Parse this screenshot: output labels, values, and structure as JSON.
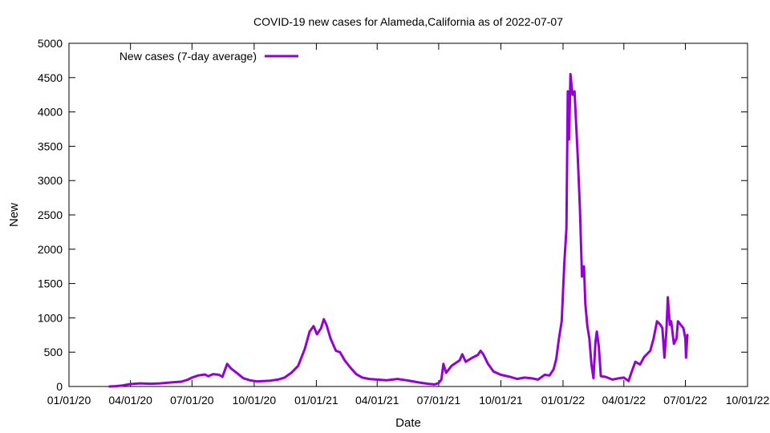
{
  "chart_data": {
    "type": "line",
    "title": "COVID-19 new cases for Alameda,California as of 2022-07-07",
    "xlabel": "Date",
    "ylabel": "New",
    "xlim": [
      "2020-01-01",
      "2022-10-01"
    ],
    "ylim": [
      0,
      5000
    ],
    "x_ticks": [
      "2020-01-01",
      "2020-04-01",
      "2020-07-01",
      "2020-10-01",
      "2021-01-01",
      "2021-04-01",
      "2021-07-01",
      "2021-10-01",
      "2022-01-01",
      "2022-04-01",
      "2022-07-01",
      "2022-10-01"
    ],
    "x_tick_labels": [
      "01/01/20",
      "04/01/20",
      "07/01/20",
      "10/01/20",
      "01/01/21",
      "04/01/21",
      "07/01/21",
      "10/01/21",
      "01/01/22",
      "04/01/22",
      "07/01/22",
      "10/01/22"
    ],
    "y_ticks": [
      0,
      500,
      1000,
      1500,
      2000,
      2500,
      3000,
      3500,
      4000,
      4500,
      5000
    ],
    "y_tick_labels": [
      "0",
      "500",
      "1000",
      "1500",
      "2000",
      "2500",
      "3000",
      "3500",
      "4000",
      "4500",
      "5000"
    ],
    "grid": false,
    "legend_position": "top-left",
    "series": [
      {
        "name": "New cases (7-day average)",
        "color": "#9400d3",
        "points": [
          [
            "2020-03-01",
            0
          ],
          [
            "2020-03-10",
            5
          ],
          [
            "2020-03-20",
            15
          ],
          [
            "2020-04-01",
            35
          ],
          [
            "2020-04-15",
            45
          ],
          [
            "2020-05-01",
            40
          ],
          [
            "2020-05-15",
            45
          ],
          [
            "2020-06-01",
            60
          ],
          [
            "2020-06-15",
            70
          ],
          [
            "2020-06-25",
            100
          ],
          [
            "2020-07-01",
            130
          ],
          [
            "2020-07-10",
            160
          ],
          [
            "2020-07-20",
            175
          ],
          [
            "2020-07-25",
            150
          ],
          [
            "2020-08-01",
            180
          ],
          [
            "2020-08-10",
            170
          ],
          [
            "2020-08-15",
            140
          ],
          [
            "2020-08-22",
            330
          ],
          [
            "2020-08-28",
            260
          ],
          [
            "2020-09-05",
            200
          ],
          [
            "2020-09-15",
            120
          ],
          [
            "2020-09-25",
            90
          ],
          [
            "2020-10-05",
            75
          ],
          [
            "2020-10-15",
            80
          ],
          [
            "2020-10-25",
            85
          ],
          [
            "2020-11-05",
            100
          ],
          [
            "2020-11-15",
            130
          ],
          [
            "2020-11-25",
            200
          ],
          [
            "2020-12-05",
            300
          ],
          [
            "2020-12-15",
            550
          ],
          [
            "2020-12-22",
            800
          ],
          [
            "2020-12-28",
            880
          ],
          [
            "2021-01-02",
            760
          ],
          [
            "2021-01-08",
            850
          ],
          [
            "2021-01-12",
            980
          ],
          [
            "2021-01-16",
            900
          ],
          [
            "2021-01-22",
            700
          ],
          [
            "2021-01-30",
            520
          ],
          [
            "2021-02-05",
            500
          ],
          [
            "2021-02-12",
            380
          ],
          [
            "2021-02-20",
            280
          ],
          [
            "2021-03-01",
            180
          ],
          [
            "2021-03-10",
            130
          ],
          [
            "2021-03-20",
            110
          ],
          [
            "2021-04-01",
            100
          ],
          [
            "2021-04-15",
            90
          ],
          [
            "2021-05-01",
            110
          ],
          [
            "2021-05-15",
            90
          ],
          [
            "2021-06-01",
            60
          ],
          [
            "2021-06-15",
            40
          ],
          [
            "2021-06-25",
            30
          ],
          [
            "2021-07-01",
            50
          ],
          [
            "2021-07-05",
            100
          ],
          [
            "2021-07-08",
            330
          ],
          [
            "2021-07-12",
            200
          ],
          [
            "2021-07-20",
            300
          ],
          [
            "2021-08-01",
            380
          ],
          [
            "2021-08-05",
            470
          ],
          [
            "2021-08-10",
            360
          ],
          [
            "2021-08-20",
            420
          ],
          [
            "2021-08-28",
            460
          ],
          [
            "2021-09-01",
            520
          ],
          [
            "2021-09-05",
            470
          ],
          [
            "2021-09-12",
            330
          ],
          [
            "2021-09-20",
            220
          ],
          [
            "2021-10-01",
            170
          ],
          [
            "2021-10-15",
            140
          ],
          [
            "2021-10-25",
            110
          ],
          [
            "2021-11-05",
            130
          ],
          [
            "2021-11-15",
            120
          ],
          [
            "2021-11-25",
            100
          ],
          [
            "2021-12-05",
            170
          ],
          [
            "2021-12-12",
            160
          ],
          [
            "2021-12-18",
            250
          ],
          [
            "2021-12-22",
            400
          ],
          [
            "2021-12-26",
            700
          ],
          [
            "2021-12-30",
            950
          ],
          [
            "2022-01-03",
            1800
          ],
          [
            "2022-01-06",
            2300
          ],
          [
            "2022-01-08",
            4300
          ],
          [
            "2022-01-10",
            3600
          ],
          [
            "2022-01-12",
            4550
          ],
          [
            "2022-01-15",
            4250
          ],
          [
            "2022-01-18",
            4300
          ],
          [
            "2022-01-20",
            3900
          ],
          [
            "2022-01-23",
            3300
          ],
          [
            "2022-01-26",
            2600
          ],
          [
            "2022-01-29",
            1600
          ],
          [
            "2022-02-01",
            1750
          ],
          [
            "2022-02-03",
            1200
          ],
          [
            "2022-02-06",
            880
          ],
          [
            "2022-02-09",
            700
          ],
          [
            "2022-02-12",
            320
          ],
          [
            "2022-02-15",
            120
          ],
          [
            "2022-02-18",
            650
          ],
          [
            "2022-02-20",
            800
          ],
          [
            "2022-02-23",
            580
          ],
          [
            "2022-02-26",
            150
          ],
          [
            "2022-03-05",
            140
          ],
          [
            "2022-03-15",
            100
          ],
          [
            "2022-03-25",
            120
          ],
          [
            "2022-04-01",
            130
          ],
          [
            "2022-04-08",
            80
          ],
          [
            "2022-04-12",
            200
          ],
          [
            "2022-04-18",
            360
          ],
          [
            "2022-04-25",
            320
          ],
          [
            "2022-05-01",
            430
          ],
          [
            "2022-05-10",
            520
          ],
          [
            "2022-05-15",
            700
          ],
          [
            "2022-05-20",
            950
          ],
          [
            "2022-05-25",
            900
          ],
          [
            "2022-05-28",
            850
          ],
          [
            "2022-05-31",
            420
          ],
          [
            "2022-06-03",
            820
          ],
          [
            "2022-06-05",
            1300
          ],
          [
            "2022-06-08",
            900
          ],
          [
            "2022-06-10",
            950
          ],
          [
            "2022-06-14",
            620
          ],
          [
            "2022-06-18",
            700
          ],
          [
            "2022-06-20",
            950
          ],
          [
            "2022-06-24",
            900
          ],
          [
            "2022-06-28",
            850
          ],
          [
            "2022-07-01",
            700
          ],
          [
            "2022-07-02",
            420
          ],
          [
            "2022-07-04",
            750
          ]
        ]
      }
    ]
  }
}
